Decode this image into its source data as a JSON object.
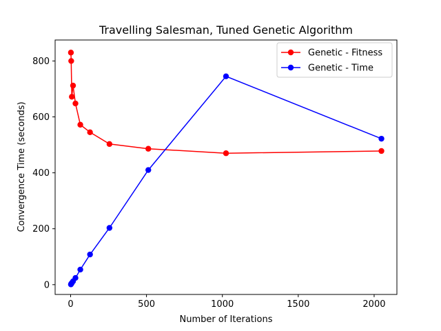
{
  "chart_data": {
    "type": "line",
    "title": "Travelling Salesman, Tuned Genetic Algorithm",
    "xlabel": "Number of Iterations",
    "ylabel": "Convergence Time (seconds)",
    "xlim": [
      -102,
      2150
    ],
    "ylim": [
      -35,
      875
    ],
    "xticks": [
      0,
      500,
      1000,
      1500,
      2000
    ],
    "yticks": [
      0,
      200,
      400,
      600,
      800
    ],
    "grid": false,
    "legend_position": "top-right",
    "series": [
      {
        "name": "Genetic - Fitness",
        "color": "#ff0000",
        "x": [
          2,
          4,
          8,
          16,
          32,
          64,
          128,
          256,
          512,
          1024,
          2048
        ],
        "y": [
          830,
          800,
          672,
          712,
          648,
          572,
          545,
          503,
          486,
          470,
          478
        ]
      },
      {
        "name": "Genetic - Time",
        "color": "#0000ff",
        "x": [
          2,
          4,
          8,
          16,
          32,
          64,
          128,
          256,
          512,
          1024,
          2048
        ],
        "y": [
          1,
          3,
          6,
          12,
          24,
          54,
          108,
          203,
          410,
          745,
          522
        ]
      }
    ]
  }
}
